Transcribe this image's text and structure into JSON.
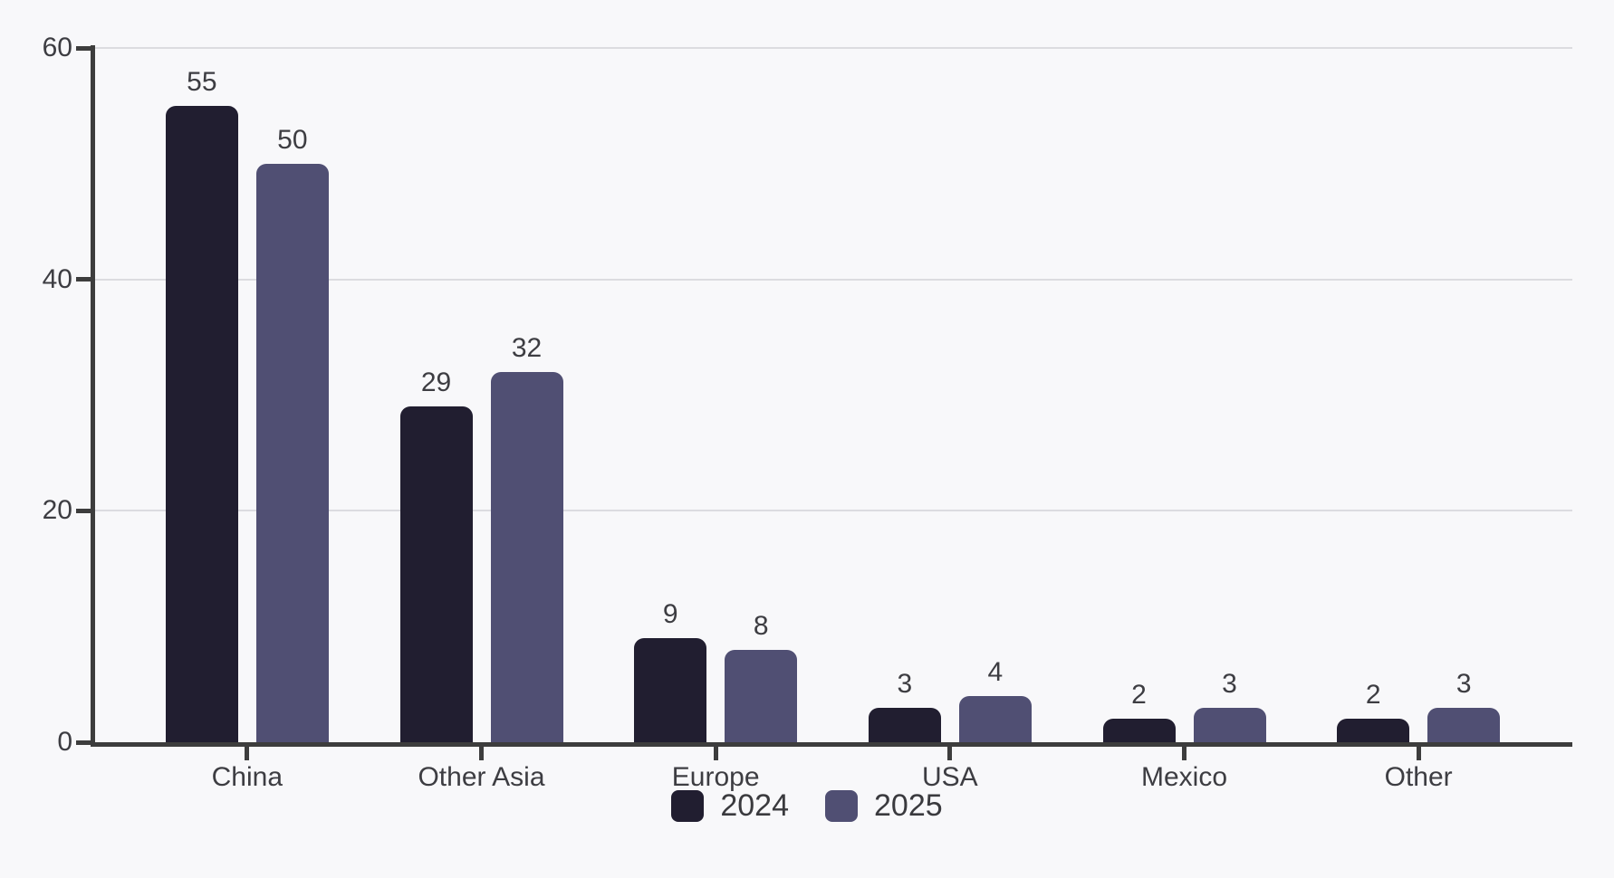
{
  "chart_data": {
    "type": "bar",
    "categories": [
      "China",
      "Other Asia",
      "Europe",
      "USA",
      "Mexico",
      "Other"
    ],
    "series": [
      {
        "name": "2024",
        "color": "#211e30",
        "values": [
          55,
          29,
          9,
          3,
          2,
          2
        ]
      },
      {
        "name": "2025",
        "color": "#504f73",
        "values": [
          50,
          32,
          8,
          4,
          3,
          3
        ]
      }
    ],
    "title": "",
    "xlabel": "",
    "ylabel": "",
    "ylim": [
      0,
      60
    ],
    "yticks": [
      0,
      20,
      40,
      60
    ],
    "grid": true,
    "legend_position": "bottom",
    "value_labels": true
  },
  "colors": {
    "background": "#f8f8fa",
    "gridline": "#dcdce0",
    "axis": "#3d3d3d",
    "text": "#3d3d42"
  }
}
